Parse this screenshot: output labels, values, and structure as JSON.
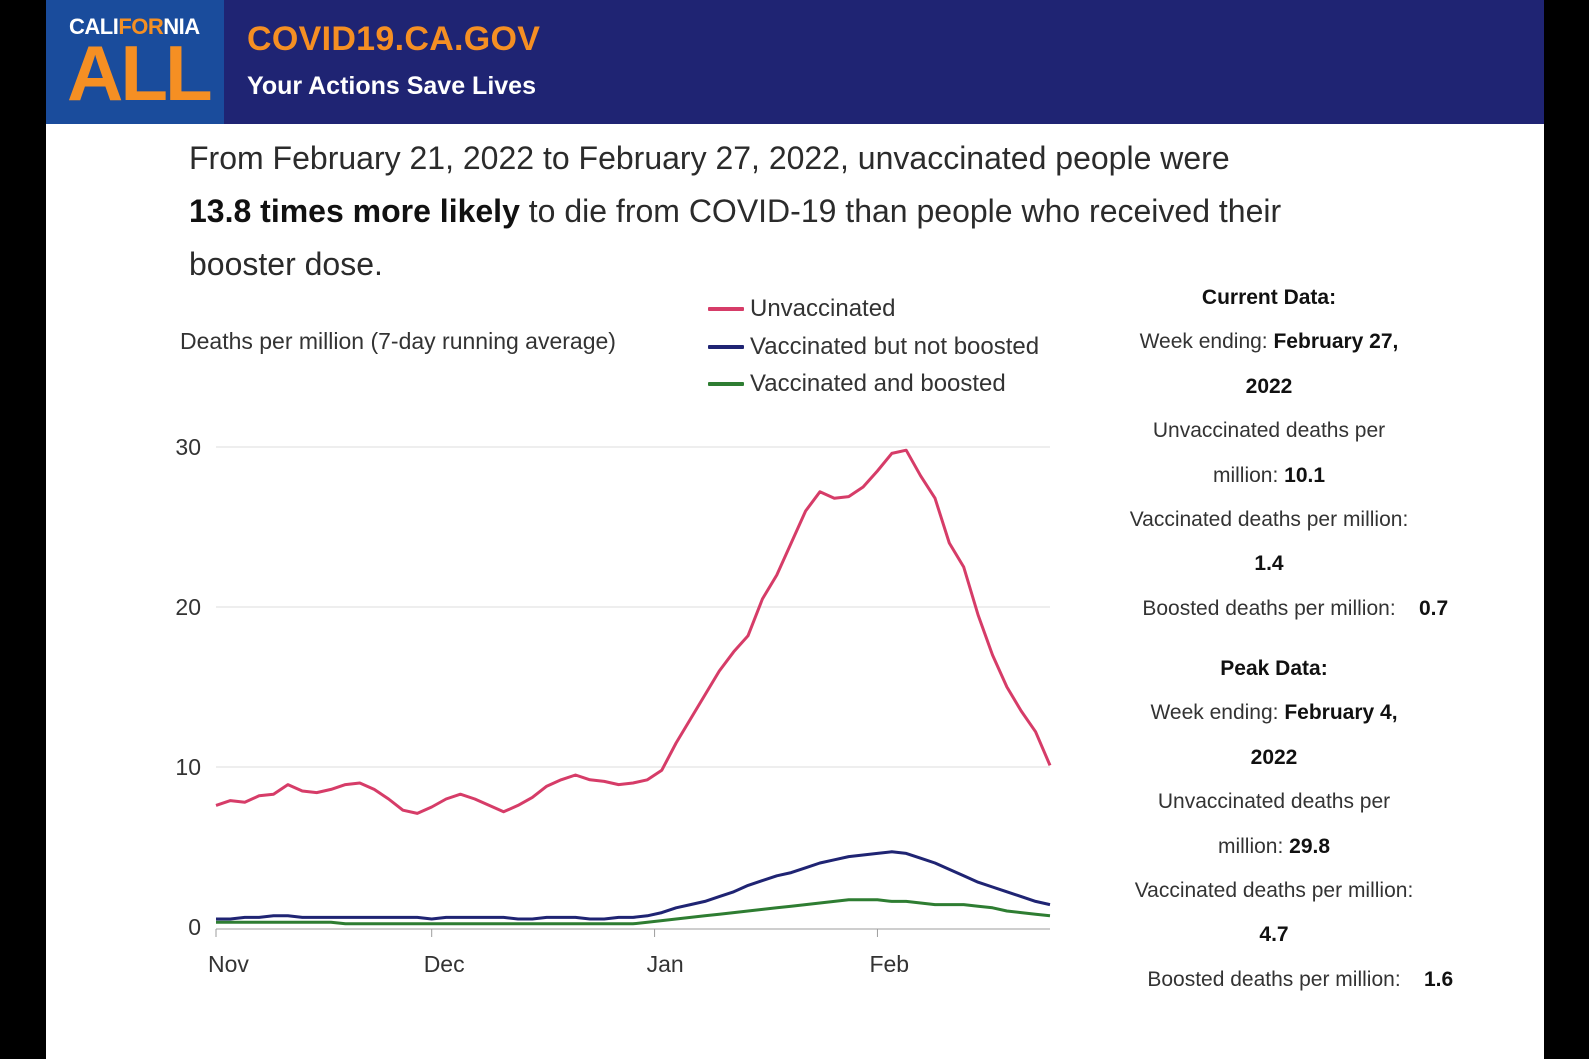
{
  "banner": {
    "logo_top_pre": "CALI",
    "logo_top_mid": "FOR",
    "logo_top_post": "NIA",
    "logo_main": "ALL",
    "site_title": "COVID19.CA.GOV",
    "tagline": "Your Actions Save Lives"
  },
  "headline": {
    "part1": "From February 21, 2022 to February 27, 2022, unvaccinated people were",
    "emphasis": "13.8 times more likely",
    "part2": " to die from COVID-19 than people who received their booster dose."
  },
  "current": {
    "heading": "Current Data:",
    "week_label": "Week ending: ",
    "week_value_1": "February 27,",
    "week_value_2": "2022",
    "unvax_label_1": "Unvaccinated deaths per",
    "unvax_label_2": "million: ",
    "unvax_value": "10.1",
    "vax_label": "Vaccinated deaths per million:",
    "vax_value": "1.4",
    "boost_label": "Boosted deaths per million:",
    "boost_value": "0.7"
  },
  "peak": {
    "heading": "Peak Data:",
    "week_label": "Week ending: ",
    "week_value_1": "February 4,",
    "week_value_2": "2022",
    "unvax_label_1": "Unvaccinated deaths per",
    "unvax_label_2": "million: ",
    "unvax_value": "29.8",
    "vax_label": "Vaccinated deaths per million:",
    "vax_value": "4.7",
    "boost_label": "Boosted deaths per million:",
    "boost_value": "1.6"
  },
  "chart_data": {
    "type": "line",
    "ylabel": "Deaths per million (7-day running average)",
    "ylim": [
      0,
      30
    ],
    "yticks": [
      0,
      10,
      20,
      30
    ],
    "grid": true,
    "legend_position": "top",
    "x_start": "2022-10-31",
    "x_step_days": 2,
    "x_ticks": [
      {
        "label": "Nov",
        "index": 0
      },
      {
        "label": "Dec",
        "index": 15
      },
      {
        "label": "Jan",
        "index": 30.5
      },
      {
        "label": "Feb",
        "index": 46
      }
    ],
    "series": [
      {
        "name": "Unvaccinated",
        "color": "#d63c68",
        "values": [
          7.6,
          7.9,
          7.8,
          8.2,
          8.3,
          8.9,
          8.5,
          8.4,
          8.6,
          8.9,
          9.0,
          8.6,
          8.0,
          7.3,
          7.1,
          7.5,
          8.0,
          8.3,
          8.0,
          7.6,
          7.2,
          7.6,
          8.1,
          8.8,
          9.2,
          9.5,
          9.2,
          9.1,
          8.9,
          9.0,
          9.2,
          9.8,
          11.5,
          13.0,
          14.5,
          16.0,
          17.2,
          18.2,
          20.5,
          22.0,
          24.0,
          26.0,
          27.2,
          26.8,
          26.9,
          27.5,
          28.5,
          29.6,
          29.8,
          28.2,
          26.8,
          24.0,
          22.5,
          19.5,
          17.0,
          15.0,
          13.5,
          12.2,
          10.1
        ]
      },
      {
        "name": "Vaccinated but not boosted",
        "color": "#1f2473",
        "values": [
          0.5,
          0.5,
          0.6,
          0.6,
          0.7,
          0.7,
          0.6,
          0.6,
          0.6,
          0.6,
          0.6,
          0.6,
          0.6,
          0.6,
          0.6,
          0.5,
          0.6,
          0.6,
          0.6,
          0.6,
          0.6,
          0.5,
          0.5,
          0.6,
          0.6,
          0.6,
          0.5,
          0.5,
          0.6,
          0.6,
          0.7,
          0.9,
          1.2,
          1.4,
          1.6,
          1.9,
          2.2,
          2.6,
          2.9,
          3.2,
          3.4,
          3.7,
          4.0,
          4.2,
          4.4,
          4.5,
          4.6,
          4.7,
          4.6,
          4.3,
          4.0,
          3.6,
          3.2,
          2.8,
          2.5,
          2.2,
          1.9,
          1.6,
          1.4
        ]
      },
      {
        "name": "Vaccinated and boosted",
        "color": "#2e7d32",
        "values": [
          0.3,
          0.3,
          0.3,
          0.3,
          0.3,
          0.3,
          0.3,
          0.3,
          0.3,
          0.2,
          0.2,
          0.2,
          0.2,
          0.2,
          0.2,
          0.2,
          0.2,
          0.2,
          0.2,
          0.2,
          0.2,
          0.2,
          0.2,
          0.2,
          0.2,
          0.2,
          0.2,
          0.2,
          0.2,
          0.2,
          0.3,
          0.4,
          0.5,
          0.6,
          0.7,
          0.8,
          0.9,
          1.0,
          1.1,
          1.2,
          1.3,
          1.4,
          1.5,
          1.6,
          1.7,
          1.7,
          1.7,
          1.6,
          1.6,
          1.5,
          1.4,
          1.4,
          1.4,
          1.3,
          1.2,
          1.0,
          0.9,
          0.8,
          0.7
        ]
      }
    ]
  }
}
